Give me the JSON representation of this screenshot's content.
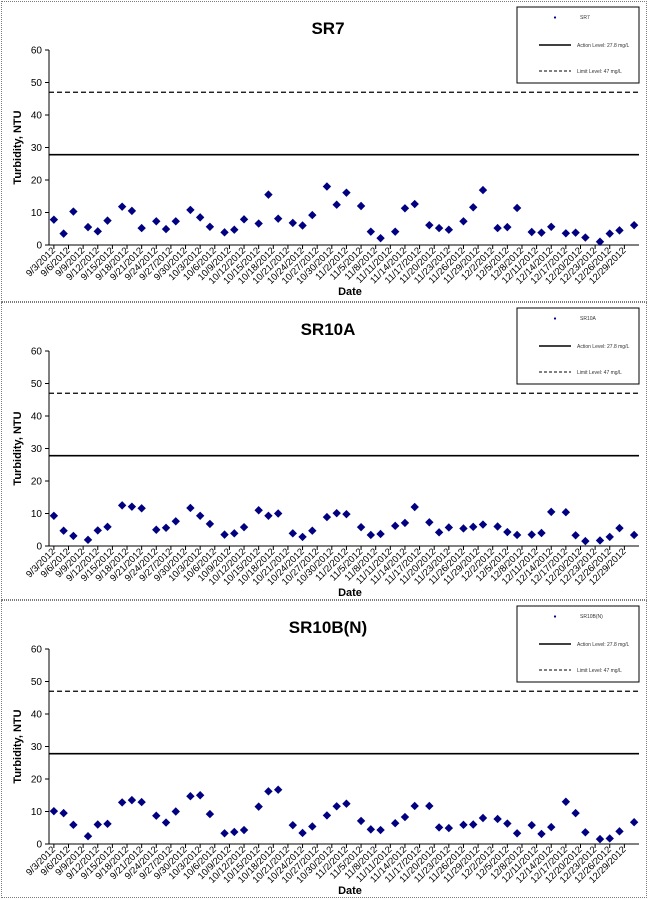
{
  "chart_data": [
    {
      "type": "scatter",
      "title": "SR7",
      "xlabel": "Date",
      "ylabel": "Turbidity, NTU",
      "ylim": [
        0,
        60
      ],
      "yticks": [
        "0",
        "10",
        "20",
        "30",
        "40",
        "50",
        "60"
      ],
      "x_tick_labels": [
        "9/3/2012",
        "9/6/2012",
        "9/9/2012",
        "9/12/2012",
        "9/15/2012",
        "9/18/2012",
        "9/21/2012",
        "9/24/2012",
        "9/27/2012",
        "9/30/2012",
        "10/3/2012",
        "10/6/2012",
        "10/9/2012",
        "10/12/2012",
        "10/15/2012",
        "10/18/2012",
        "10/21/2012",
        "10/24/2012",
        "10/27/2012",
        "10/30/2012",
        "11/2/2012",
        "11/5/2012",
        "11/8/2012",
        "11/11/2012",
        "11/14/2012",
        "11/17/2012",
        "11/20/2012",
        "11/23/2012",
        "11/26/2012",
        "11/29/2012",
        "12/2/2012",
        "12/5/2012",
        "12/8/2012",
        "12/11/2012",
        "12/14/2012",
        "12/17/2012",
        "12/20/2012",
        "12/23/2012",
        "12/26/2012",
        "12/29/2012"
      ],
      "grid": false,
      "legend_position": "top-right",
      "legend": [
        "SR7",
        "Action Level: 27.8 mg/L",
        "Limit Level: 47 mg/L"
      ],
      "reference_lines": [
        {
          "name": "Action Level: 27.8 mg/L",
          "value": 27.8,
          "style": "solid"
        },
        {
          "name": "Limit Level: 47 mg/L",
          "value": 47,
          "style": "dashed"
        }
      ],
      "series": [
        {
          "name": "SR7",
          "points": [
            [
              "9/3/2012",
              7.8
            ],
            [
              "9/5/2012",
              3.5
            ],
            [
              "9/7/2012",
              10.3
            ],
            [
              "9/10/2012",
              5.5
            ],
            [
              "9/12/2012",
              4.2
            ],
            [
              "9/14/2012",
              7.5
            ],
            [
              "9/17/2012",
              11.8
            ],
            [
              "9/19/2012",
              10.5
            ],
            [
              "9/21/2012",
              5.2
            ],
            [
              "9/24/2012",
              7.3
            ],
            [
              "9/26/2012",
              4.9
            ],
            [
              "9/28/2012",
              7.3
            ],
            [
              "10/1/2012",
              10.8
            ],
            [
              "10/3/2012",
              8.5
            ],
            [
              "10/5/2012",
              5.6
            ],
            [
              "10/8/2012",
              3.9
            ],
            [
              "10/10/2012",
              4.7
            ],
            [
              "10/12/2012",
              7.9
            ],
            [
              "10/15/2012",
              6.6
            ],
            [
              "10/17/2012",
              15.5
            ],
            [
              "10/19/2012",
              8.1
            ],
            [
              "10/22/2012",
              6.8
            ],
            [
              "10/24/2012",
              6.0
            ],
            [
              "10/26/2012",
              9.2
            ],
            [
              "10/29/2012",
              18.0
            ],
            [
              "10/31/2012",
              12.4
            ],
            [
              "11/2/2012",
              16.1
            ],
            [
              "11/5/2012",
              12.0
            ],
            [
              "11/7/2012",
              4.1
            ],
            [
              "11/9/2012",
              2.1
            ],
            [
              "11/12/2012",
              4.1
            ],
            [
              "11/14/2012",
              11.3
            ],
            [
              "11/16/2012",
              12.6
            ],
            [
              "11/19/2012",
              6.1
            ],
            [
              "11/21/2012",
              5.2
            ],
            [
              "11/23/2012",
              4.7
            ],
            [
              "11/26/2012",
              7.3
            ],
            [
              "11/28/2012",
              11.6
            ],
            [
              "11/30/2012",
              16.9
            ],
            [
              "12/3/2012",
              5.2
            ],
            [
              "12/5/2012",
              5.5
            ],
            [
              "12/7/2012",
              11.4
            ],
            [
              "12/10/2012",
              4.0
            ],
            [
              "12/12/2012",
              3.8
            ],
            [
              "12/14/2012",
              5.6
            ],
            [
              "12/17/2012",
              3.6
            ],
            [
              "12/19/2012",
              3.8
            ],
            [
              "12/21/2012",
              2.3
            ],
            [
              "12/24/2012",
              1.0
            ],
            [
              "12/26/2012",
              3.5
            ],
            [
              "12/28/2012",
              4.5
            ],
            [
              "12/31/2012",
              6.1
            ]
          ]
        }
      ]
    },
    {
      "type": "scatter",
      "title": "SR10A",
      "xlabel": "Date",
      "ylabel": "Turbidity, NTU",
      "ylim": [
        0,
        60
      ],
      "yticks": [
        "0",
        "10",
        "20",
        "30",
        "40",
        "50",
        "60"
      ],
      "x_tick_labels": [
        "9/3/2012",
        "9/6/2012",
        "9/9/2012",
        "9/12/2012",
        "9/15/2012",
        "9/18/2012",
        "9/21/2012",
        "9/24/2012",
        "9/27/2012",
        "9/30/2012",
        "10/3/2012",
        "10/6/2012",
        "10/9/2012",
        "10/12/2012",
        "10/15/2012",
        "10/18/2012",
        "10/21/2012",
        "10/24/2012",
        "10/27/2012",
        "10/30/2012",
        "11/2/2012",
        "11/5/2012",
        "11/8/2012",
        "11/11/2012",
        "11/14/2012",
        "11/17/2012",
        "11/20/2012",
        "11/23/2012",
        "11/26/2012",
        "11/29/2012",
        "12/2/2012",
        "12/5/2012",
        "12/8/2012",
        "12/11/2012",
        "12/14/2012",
        "12/17/2012",
        "12/20/2012",
        "12/23/2012",
        "12/26/2012",
        "12/29/2012"
      ],
      "grid": false,
      "legend_position": "top-right",
      "legend": [
        "SR10A",
        "Action Level: 27.8 mg/L",
        "Limit Level: 47 mg/L"
      ],
      "reference_lines": [
        {
          "name": "Action Level: 27.8 mg/L",
          "value": 27.8,
          "style": "solid"
        },
        {
          "name": "Limit Level: 47 mg/L",
          "value": 47,
          "style": "dashed"
        }
      ],
      "series": [
        {
          "name": "SR10A",
          "points": [
            [
              "9/3/2012",
              9.3
            ],
            [
              "9/5/2012",
              4.7
            ],
            [
              "9/7/2012",
              3.1
            ],
            [
              "9/10/2012",
              1.9
            ],
            [
              "9/12/2012",
              4.8
            ],
            [
              "9/14/2012",
              5.9
            ],
            [
              "9/17/2012",
              12.5
            ],
            [
              "9/19/2012",
              12.1
            ],
            [
              "9/21/2012",
              11.6
            ],
            [
              "9/24/2012",
              5.0
            ],
            [
              "9/26/2012",
              5.6
            ],
            [
              "9/28/2012",
              7.6
            ],
            [
              "10/1/2012",
              11.7
            ],
            [
              "10/3/2012",
              9.3
            ],
            [
              "10/5/2012",
              6.8
            ],
            [
              "10/8/2012",
              3.5
            ],
            [
              "10/10/2012",
              3.9
            ],
            [
              "10/12/2012",
              5.8
            ],
            [
              "10/15/2012",
              11.0
            ],
            [
              "10/17/2012",
              9.3
            ],
            [
              "10/19/2012",
              10.0
            ],
            [
              "10/22/2012",
              3.9
            ],
            [
              "10/24/2012",
              2.8
            ],
            [
              "10/26/2012",
              4.7
            ],
            [
              "10/29/2012",
              8.9
            ],
            [
              "10/31/2012",
              10.1
            ],
            [
              "11/2/2012",
              9.8
            ],
            [
              "11/5/2012",
              5.8
            ],
            [
              "11/7/2012",
              3.4
            ],
            [
              "11/9/2012",
              3.7
            ],
            [
              "11/12/2012",
              6.2
            ],
            [
              "11/14/2012",
              7.1
            ],
            [
              "11/16/2012",
              12.0
            ],
            [
              "11/19/2012",
              7.3
            ],
            [
              "11/21/2012",
              4.2
            ],
            [
              "11/23/2012",
              5.7
            ],
            [
              "11/26/2012",
              5.4
            ],
            [
              "11/28/2012",
              5.9
            ],
            [
              "11/30/2012",
              6.6
            ],
            [
              "12/3/2012",
              6.0
            ],
            [
              "12/5/2012",
              4.3
            ],
            [
              "12/7/2012",
              3.4
            ],
            [
              "12/10/2012",
              3.5
            ],
            [
              "12/12/2012",
              4.0
            ],
            [
              "12/14/2012",
              10.5
            ],
            [
              "12/17/2012",
              10.4
            ],
            [
              "12/19/2012",
              3.3
            ],
            [
              "12/21/2012",
              1.5
            ],
            [
              "12/24/2012",
              1.7
            ],
            [
              "12/26/2012",
              2.8
            ],
            [
              "12/28/2012",
              5.5
            ],
            [
              "12/31/2012",
              3.4
            ]
          ]
        }
      ]
    },
    {
      "type": "scatter",
      "title": "SR10B(N)",
      "xlabel": "Date",
      "ylabel": "Turbidity, NTU",
      "ylim": [
        0,
        60
      ],
      "yticks": [
        "0",
        "10",
        "20",
        "30",
        "40",
        "50",
        "60"
      ],
      "x_tick_labels": [
        "9/3/2012",
        "9/6/2012",
        "9/9/2012",
        "9/12/2012",
        "9/15/2012",
        "9/18/2012",
        "9/21/2012",
        "9/24/2012",
        "9/27/2012",
        "9/30/2012",
        "10/3/2012",
        "10/6/2012",
        "10/9/2012",
        "10/12/2012",
        "10/15/2012",
        "10/18/2012",
        "10/21/2012",
        "10/24/2012",
        "10/27/2012",
        "10/30/2012",
        "11/2/2012",
        "11/5/2012",
        "11/8/2012",
        "11/11/2012",
        "11/14/2012",
        "11/17/2012",
        "11/20/2012",
        "11/23/2012",
        "11/26/2012",
        "11/29/2012",
        "12/2/2012",
        "12/5/2012",
        "12/8/2012",
        "12/11/2012",
        "12/14/2012",
        "12/17/2012",
        "12/20/2012",
        "12/23/2012",
        "12/26/2012",
        "12/29/2012"
      ],
      "grid": false,
      "legend_position": "top-right",
      "legend": [
        "SR10B(N)",
        "Action Level: 27.8 mg/L",
        "Limit Level: 47 mg/L"
      ],
      "reference_lines": [
        {
          "name": "Action Level: 27.8 mg/L",
          "value": 27.8,
          "style": "solid"
        },
        {
          "name": "Limit Level: 47 mg/L",
          "value": 47,
          "style": "dashed"
        }
      ],
      "series": [
        {
          "name": "SR10B(N)",
          "points": [
            [
              "9/3/2012",
              10.1
            ],
            [
              "9/5/2012",
              9.5
            ],
            [
              "9/7/2012",
              5.9
            ],
            [
              "9/10/2012",
              2.4
            ],
            [
              "9/12/2012",
              6.0
            ],
            [
              "9/14/2012",
              6.2
            ],
            [
              "9/17/2012",
              12.8
            ],
            [
              "9/19/2012",
              13.5
            ],
            [
              "9/21/2012",
              12.9
            ],
            [
              "9/24/2012",
              8.7
            ],
            [
              "9/26/2012",
              6.6
            ],
            [
              "9/28/2012",
              10.0
            ],
            [
              "10/1/2012",
              14.7
            ],
            [
              "10/3/2012",
              15.0
            ],
            [
              "10/5/2012",
              9.2
            ],
            [
              "10/8/2012",
              3.3
            ],
            [
              "10/10/2012",
              3.7
            ],
            [
              "10/12/2012",
              4.3
            ],
            [
              "10/15/2012",
              11.5
            ],
            [
              "10/17/2012",
              16.2
            ],
            [
              "10/19/2012",
              16.7
            ],
            [
              "10/22/2012",
              5.8
            ],
            [
              "10/24/2012",
              3.4
            ],
            [
              "10/26/2012",
              5.4
            ],
            [
              "10/29/2012",
              8.8
            ],
            [
              "10/31/2012",
              11.6
            ],
            [
              "11/2/2012",
              12.4
            ],
            [
              "11/5/2012",
              7.1
            ],
            [
              "11/7/2012",
              4.5
            ],
            [
              "11/9/2012",
              4.3
            ],
            [
              "11/12/2012",
              6.4
            ],
            [
              "11/14/2012",
              8.3
            ],
            [
              "11/16/2012",
              11.7
            ],
            [
              "11/19/2012",
              11.7
            ],
            [
              "11/21/2012",
              5.1
            ],
            [
              "11/23/2012",
              4.9
            ],
            [
              "11/26/2012",
              5.9
            ],
            [
              "11/28/2012",
              6.0
            ],
            [
              "11/30/2012",
              8.0
            ],
            [
              "12/3/2012",
              7.7
            ],
            [
              "12/5/2012",
              6.3
            ],
            [
              "12/7/2012",
              3.3
            ],
            [
              "12/10/2012",
              5.8
            ],
            [
              "12/12/2012",
              3.1
            ],
            [
              "12/14/2012",
              5.2
            ],
            [
              "12/17/2012",
              13.0
            ],
            [
              "12/19/2012",
              9.5
            ],
            [
              "12/21/2012",
              3.6
            ],
            [
              "12/24/2012",
              1.5
            ],
            [
              "12/26/2012",
              1.7
            ],
            [
              "12/28/2012",
              3.9
            ],
            [
              "12/31/2012",
              6.7
            ]
          ]
        }
      ]
    }
  ]
}
